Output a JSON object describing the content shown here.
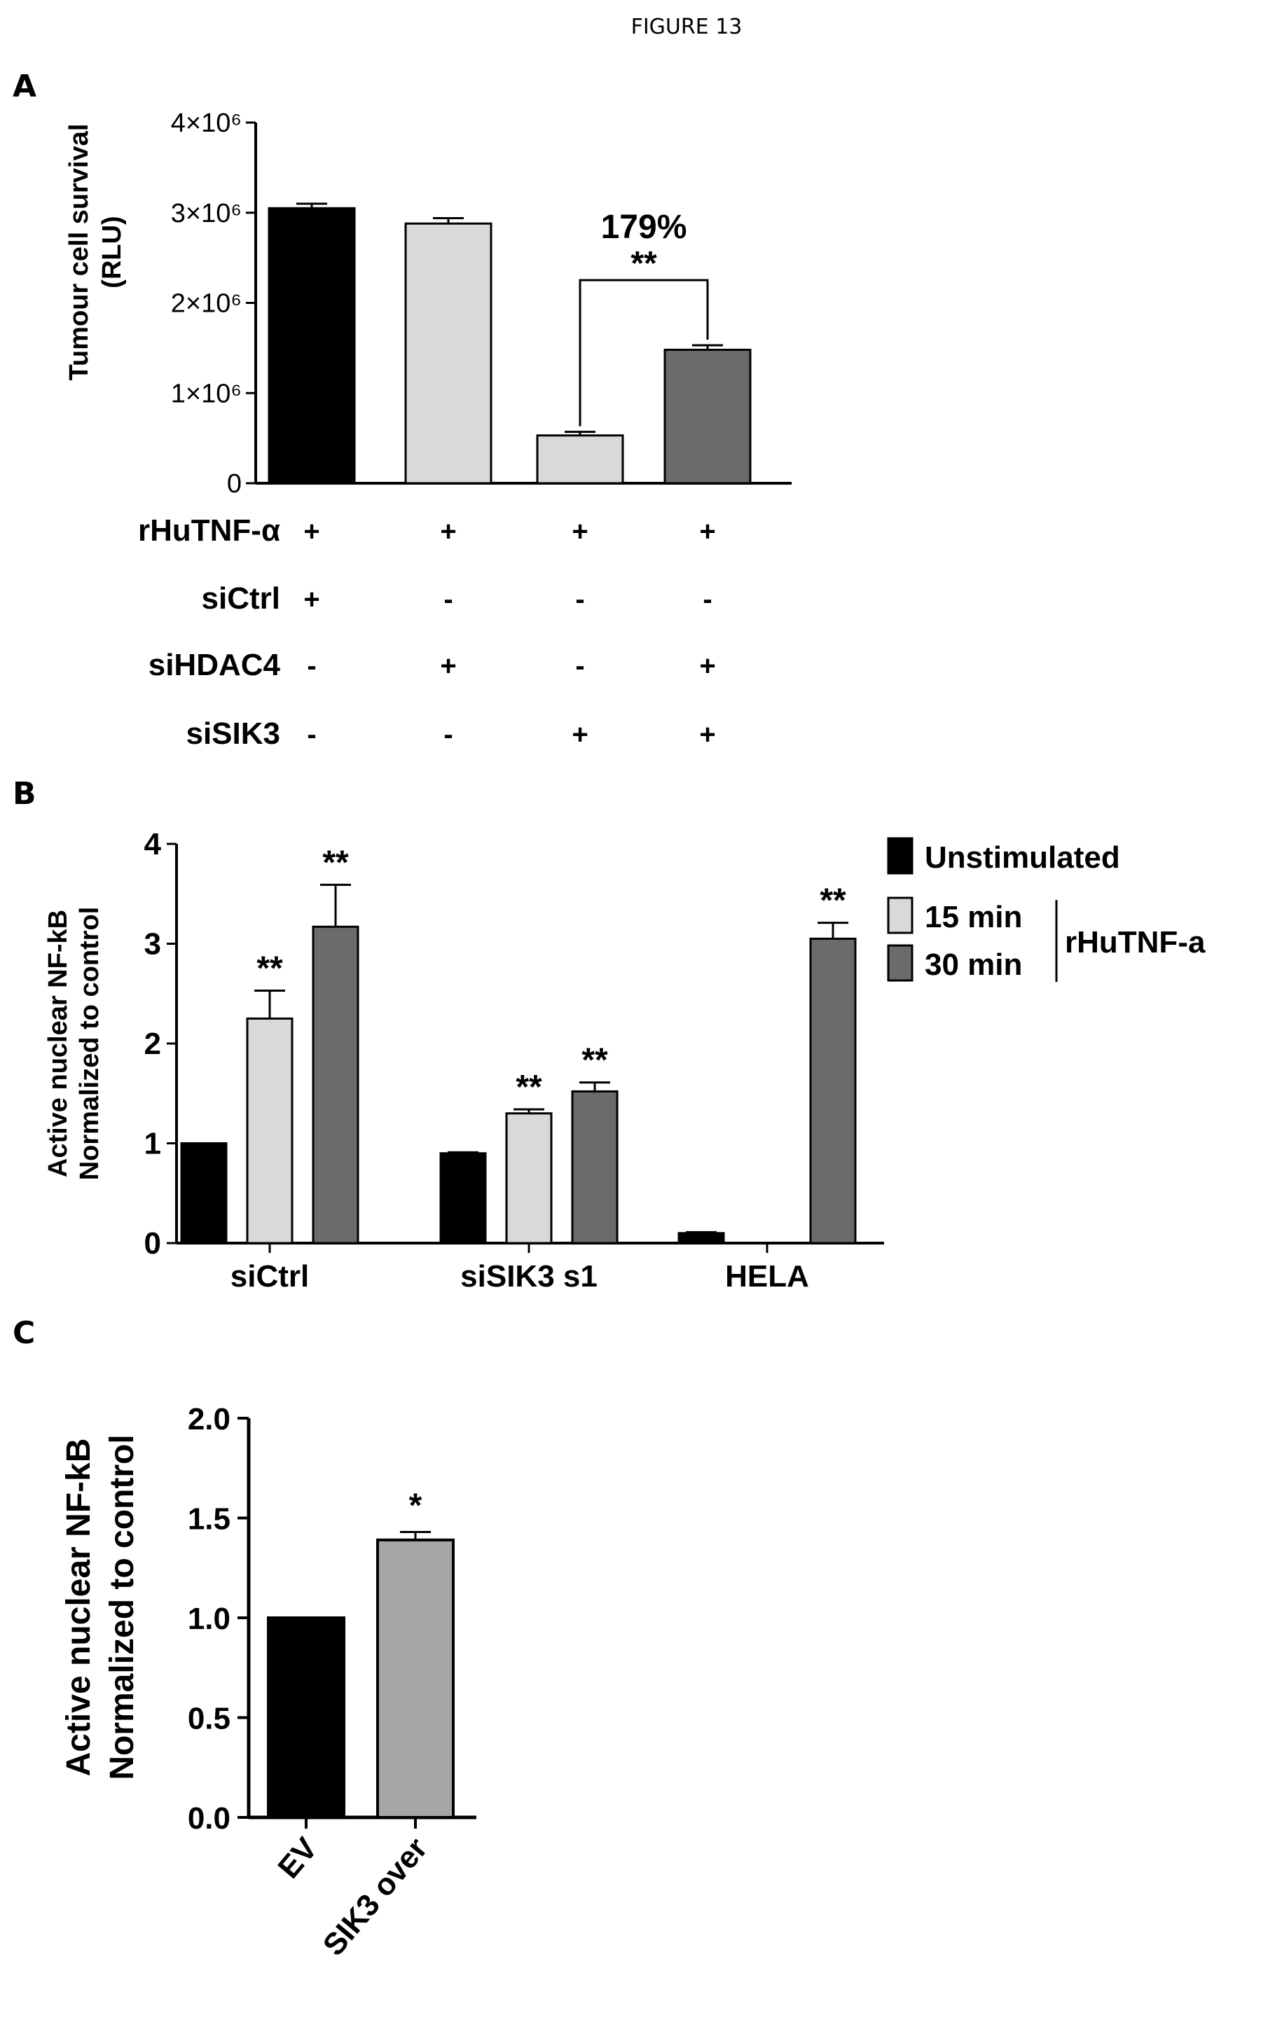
{
  "figure_title": "FIGURE 13",
  "panels": {
    "A": "A",
    "B": "B",
    "C": "C"
  },
  "colors": {
    "black": "#000000",
    "light_gray": "#d9d9d9",
    "dark_gray": "#6b6b6b",
    "medium_gray": "#a6a6a6"
  },
  "chart_data": [
    {
      "type": "bar",
      "panel": "A",
      "ylabel": [
        "Tumour cell survival",
        "(RLU)"
      ],
      "yticks": [
        {
          "value": 0,
          "label": "0"
        },
        {
          "value": 1000000,
          "label": "1×10⁶"
        },
        {
          "value": 2000000,
          "label": "2×10⁶"
        },
        {
          "value": 3000000,
          "label": "3×10⁶"
        },
        {
          "value": 4000000,
          "label": "4×10⁶"
        }
      ],
      "ylim": [
        0,
        4000000
      ],
      "bars": [
        {
          "value": 3050000,
          "error": 50000,
          "color": "#000000"
        },
        {
          "value": 2880000,
          "error": 60000,
          "color": "#d9d9d9"
        },
        {
          "value": 530000,
          "error": 40000,
          "color": "#d9d9d9"
        },
        {
          "value": 1480000,
          "error": 50000,
          "color": "#6b6b6b"
        }
      ],
      "annotation": {
        "percent": "179%",
        "stars": "**",
        "from_bar": 2,
        "to_bar": 3
      },
      "condition_rows": [
        {
          "label": "rHuTNF-α",
          "signs": [
            "+",
            "+",
            "+",
            "+"
          ]
        },
        {
          "label": "siCtrl",
          "signs": [
            "+",
            "-",
            "-",
            "-"
          ]
        },
        {
          "label": "siHDAC4",
          "signs": [
            "-",
            "+",
            "-",
            "+"
          ]
        },
        {
          "label": "siSIK3",
          "signs": [
            "-",
            "-",
            "+",
            "+"
          ]
        }
      ]
    },
    {
      "type": "bar",
      "panel": "B",
      "ylabel": [
        "Active nuclear NF-kB",
        "Normalized to control"
      ],
      "yticks": [
        0,
        1,
        2,
        3,
        4
      ],
      "ylim": [
        0,
        4
      ],
      "categories": [
        "siCtrl",
        "siSIK3 s1",
        "HELA"
      ],
      "series": [
        {
          "name": "Unstimulated",
          "color": "#000000",
          "values": [
            1.0,
            0.9,
            0.1
          ],
          "errors": [
            0,
            0.01,
            0.01
          ],
          "stars": [
            "",
            "",
            ""
          ]
        },
        {
          "name": "15 min",
          "color": "#d9d9d9",
          "values": [
            2.25,
            1.3,
            0
          ],
          "errors": [
            0.28,
            0.04,
            0
          ],
          "stars": [
            "**",
            "**",
            ""
          ]
        },
        {
          "name": "30 min",
          "color": "#6b6b6b",
          "values": [
            3.17,
            1.52,
            3.05
          ],
          "errors": [
            0.42,
            0.09,
            0.16
          ],
          "stars": [
            "**",
            "**",
            "**"
          ]
        }
      ],
      "legend_group_label": "rHuTNF-a",
      "legend_position": "top-right"
    },
    {
      "type": "bar",
      "panel": "C",
      "ylabel": [
        "Active nuclear NF-kB",
        "Normalized to control"
      ],
      "yticks": [
        {
          "value": 0.0,
          "label": "0.0"
        },
        {
          "value": 0.5,
          "label": "0.5"
        },
        {
          "value": 1.0,
          "label": "1.0"
        },
        {
          "value": 1.5,
          "label": "1.5"
        },
        {
          "value": 2.0,
          "label": "2.0"
        }
      ],
      "ylim": [
        0,
        2.0
      ],
      "categories": [
        "EV",
        "SIK3 over"
      ],
      "bars": [
        {
          "value": 1.0,
          "error": 0.0,
          "color": "#000000",
          "star": ""
        },
        {
          "value": 1.39,
          "error": 0.04,
          "color": "#a6a6a6",
          "star": "*"
        }
      ]
    }
  ]
}
